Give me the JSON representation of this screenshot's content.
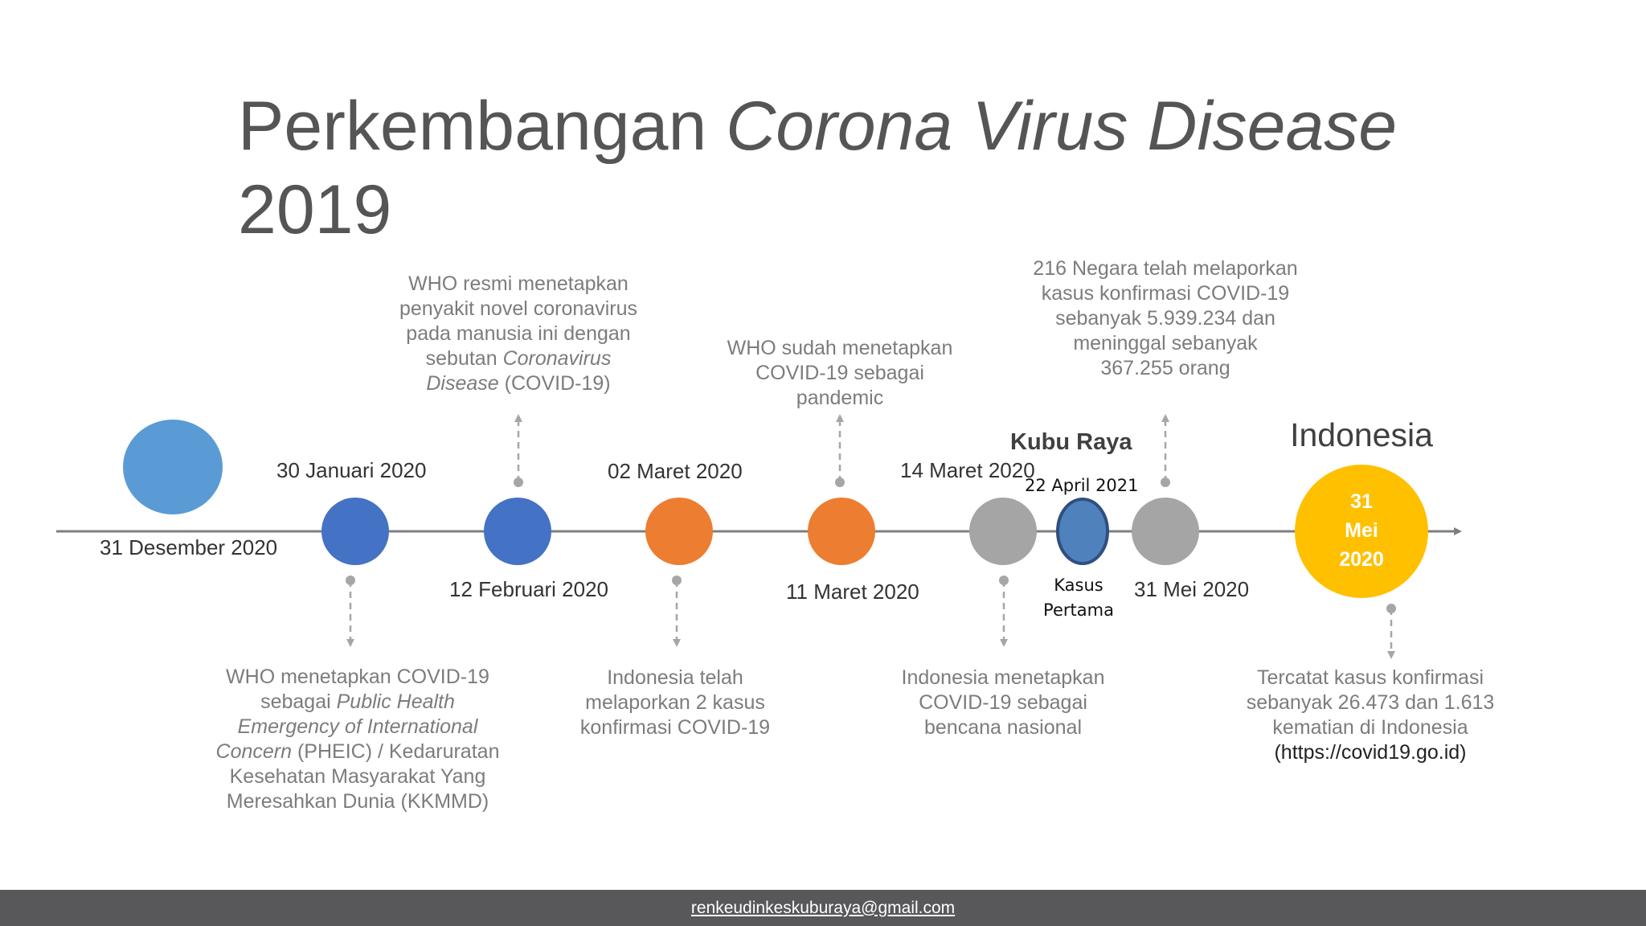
{
  "title": {
    "part1": "Perkembangan ",
    "italic": "Corona Virus Disease",
    "part2": " 2019"
  },
  "events": [
    {
      "date": "31 Desember 2020"
    },
    {
      "date": "30 Januari 2020",
      "desc": {
        "l1": "WHO menetapkan COVID-19",
        "l2a": "sebagai ",
        "l2i": "Public Health",
        "l3i": "Emergency of International",
        "l4i": "Concern",
        "l4b": " (PHEIC) / Kedaruratan",
        "l5": "Kesehatan Masyarakat Yang",
        "l6": "Meresahkan Dunia (KKMMD)"
      }
    },
    {
      "date": "12 Februari 2020",
      "desc": {
        "l1": "WHO resmi menetapkan",
        "l2": "penyakit novel coronavirus",
        "l3": "pada manusia ini dengan",
        "l4a": "sebutan ",
        "l4i": "Coronavirus",
        "l5i": "Disease",
        "l5b": " (COVID-19)"
      }
    },
    {
      "date": "02 Maret 2020",
      "desc": {
        "l1": "Indonesia telah",
        "l2": "melaporkan 2 kasus",
        "l3": "konfirmasi COVID-19"
      }
    },
    {
      "date": "11 Maret 2020",
      "desc": {
        "l1": "WHO sudah menetapkan",
        "l2": "COVID-19 sebagai",
        "l3": "pandemic"
      }
    },
    {
      "date": "14 Maret 2020",
      "desc": {
        "l1": "Indonesia menetapkan",
        "l2": "COVID-19 sebagai",
        "l3": "bencana nasional"
      }
    },
    {
      "date": "22 April 2021",
      "region": "Kubu Raya",
      "sub1": "Kasus",
      "sub2": "Pertama"
    },
    {
      "date": "31 Mei 2020",
      "desc": {
        "l1": "216 Negara telah melaporkan",
        "l2": "kasus konfirmasi COVID-19",
        "l3": "sebanyak 5.939.234 dan",
        "l4": "meninggal sebanyak",
        "l5": "367.255 orang"
      }
    },
    {
      "region": "Indonesia",
      "circle1": "31",
      "circle2": "Mei",
      "circle3": "2020",
      "desc": {
        "l1": "Tercatat kasus konfirmasi",
        "l2": "sebanyak 26.473 dan 1.613",
        "l3": "kematian di Indonesia",
        "l4": "(https://covid19.go.id)"
      }
    }
  ],
  "footer": {
    "email": "renkeudinkeskuburaya@gmail.com"
  },
  "colors": {
    "light_blue": "#5b9bd5",
    "blue": "#4472c4",
    "orange": "#ed7d31",
    "gray": "#a5a5a5",
    "yellow": "#ffc000",
    "line": "#7f7f7f"
  }
}
